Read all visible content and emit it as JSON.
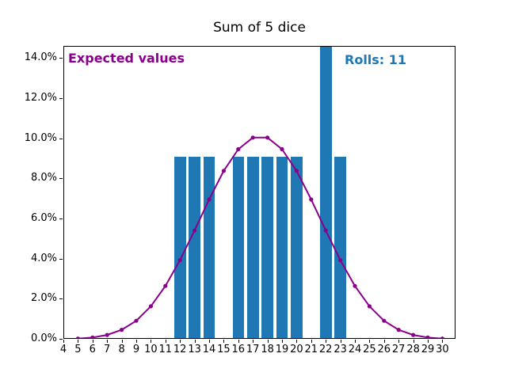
{
  "title": "Sum of 5 dice",
  "annotations": {
    "expected_label": {
      "text": "Expected values",
      "color": "#8B008B"
    },
    "rolls_label": {
      "text": "Rolls: 11",
      "color": "#1f77b4"
    }
  },
  "chart_data": {
    "type": "bar",
    "title": "Sum of 5 dice",
    "xlabel": "",
    "ylabel": "",
    "grid": false,
    "legend_position": "none",
    "xlim": [
      4,
      30.9
    ],
    "ylim": [
      0,
      14.6
    ],
    "xticks": [
      4,
      5,
      6,
      7,
      8,
      9,
      10,
      11,
      12,
      13,
      14,
      15,
      16,
      17,
      18,
      19,
      20,
      21,
      22,
      23,
      24,
      25,
      26,
      27,
      28,
      29,
      30
    ],
    "yticks": {
      "values": [
        0,
        2,
        4,
        6,
        8,
        10,
        12,
        14
      ],
      "labels": [
        "0.0%",
        "2.0%",
        "4.0%",
        "6.0%",
        "8.0%",
        "10.0%",
        "12.0%",
        "14.0%"
      ]
    },
    "series": [
      {
        "name": "Rolls",
        "type": "bar",
        "color": "#1f77b4",
        "bar_width_units": 0.8,
        "total_rolls": 11,
        "x": [
          12,
          13,
          14,
          16,
          17,
          18,
          19,
          20,
          22,
          23
        ],
        "counts": [
          1,
          1,
          1,
          1,
          1,
          1,
          1,
          1,
          2,
          1
        ],
        "values": [
          9.0909,
          9.0909,
          9.0909,
          9.0909,
          9.0909,
          9.0909,
          9.0909,
          9.0909,
          18.1818,
          9.0909
        ]
      },
      {
        "name": "Expected values",
        "type": "line",
        "color": "#8B008B",
        "marker": "dot",
        "x": [
          5,
          6,
          7,
          8,
          9,
          10,
          11,
          12,
          13,
          14,
          15,
          16,
          17,
          18,
          19,
          20,
          21,
          22,
          23,
          24,
          25,
          26,
          27,
          28,
          29,
          30
        ],
        "values": [
          0.0129,
          0.0643,
          0.1929,
          0.4501,
          0.9002,
          1.6204,
          2.6363,
          3.9223,
          5.4012,
          6.9444,
          8.3719,
          9.4522,
          10.0309,
          10.0309,
          9.4522,
          8.3719,
          6.9444,
          5.4012,
          3.9223,
          2.6363,
          1.6204,
          0.9002,
          0.4501,
          0.1929,
          0.0643,
          0.0129
        ]
      }
    ]
  }
}
